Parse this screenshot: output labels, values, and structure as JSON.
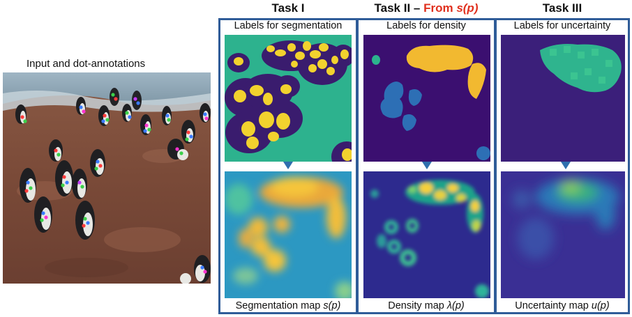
{
  "input": {
    "caption": "Input and dot-annotations"
  },
  "tasks": [
    {
      "title": "Task I",
      "top_label": "Labels for segmentation",
      "bottom_label": "Segmentation map ",
      "bottom_sym": "s(p)"
    },
    {
      "title": "Task II – ",
      "title_highlight": "From ",
      "title_highlight_sym": "s(p)",
      "top_label": "Labels for density",
      "bottom_label": "Density map ",
      "bottom_sym": "λ(p)"
    },
    {
      "title": "Task III",
      "top_label": "Labels for uncertainty",
      "bottom_label": "Uncertainty map ",
      "bottom_sym": "u(p)"
    }
  ],
  "colors": {
    "frame": "#2f5c98",
    "highlight": "#e0301e",
    "viridis_dark": "#3b0f70",
    "viridis_teal": "#2cb38d",
    "viridis_yellow": "#f4d132",
    "viridis_blue": "#2d6fb5"
  }
}
